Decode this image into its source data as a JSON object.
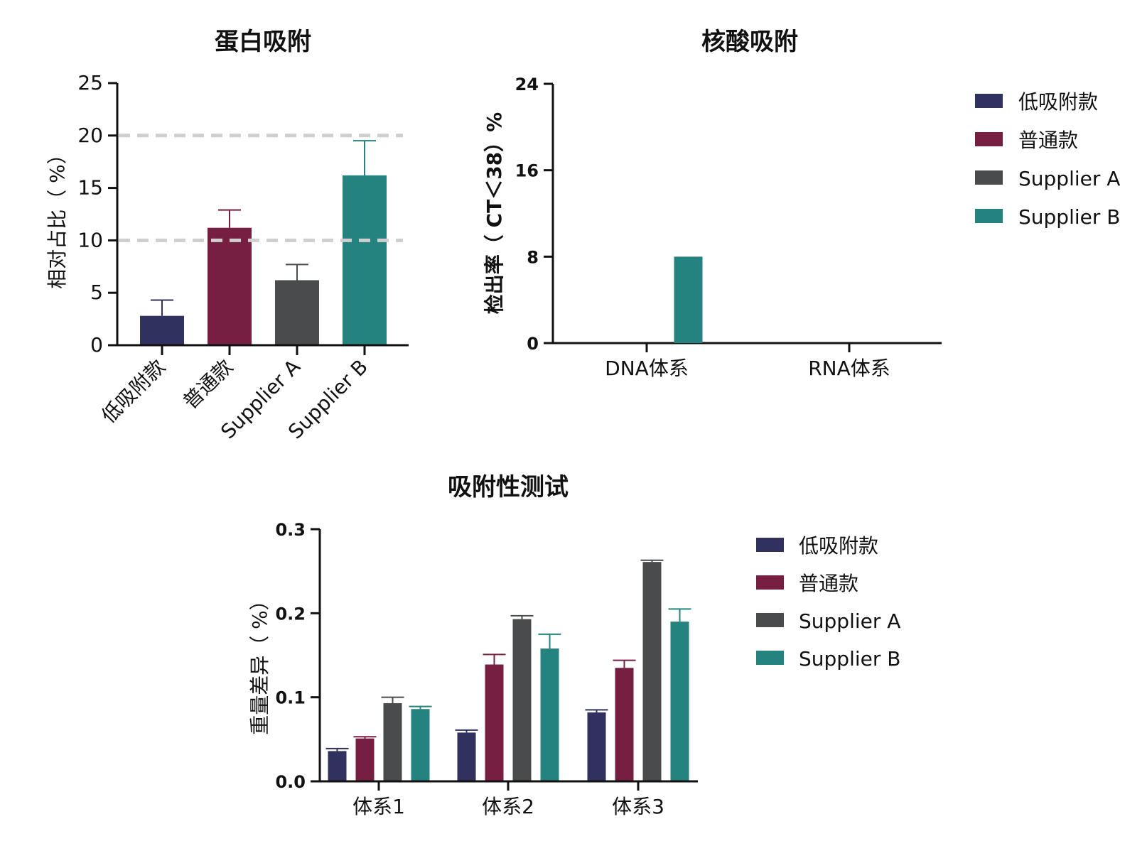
{
  "charts": [
    {
      "type": "bar",
      "title": "蛋白吸附",
      "ylabel": "相对占比（ %）",
      "ylim": [
        0,
        25
      ],
      "yticks": [
        "0",
        "5",
        "10",
        "15",
        "20",
        "25"
      ],
      "categories": [
        "低吸附款",
        "普通款",
        "Supplier A",
        "Supplier B"
      ],
      "values": [
        2.8,
        11.2,
        6.2,
        16.2
      ],
      "errors": [
        1.5,
        1.7,
        1.5,
        3.3
      ],
      "colors": [
        "#30315e",
        "#761f43",
        "#4a4b4d",
        "#25837f"
      ],
      "reference_lines": [
        10,
        20
      ]
    },
    {
      "type": "bar",
      "title": "核酸吸附",
      "ylabel": "检出率（ CT＜38）%",
      "ylim": [
        0,
        24
      ],
      "yticks": [
        "0",
        "8",
        "16",
        "24"
      ],
      "categories": [
        "DNA体系",
        "RNA体系"
      ],
      "series": [
        {
          "name": "低吸附款",
          "values": [
            0,
            0
          ]
        },
        {
          "name": "普通款",
          "values": [
            0,
            0
          ]
        },
        {
          "name": "Supplier A",
          "values": [
            0,
            0
          ]
        },
        {
          "name": "Supplier B",
          "values": [
            8,
            0
          ]
        }
      ],
      "legend": "right"
    },
    {
      "type": "bar",
      "title": "吸附性测试",
      "ylabel": "重量差异（ %）",
      "ylim": [
        0,
        0.3
      ],
      "yticks": [
        "0.0",
        "0.1",
        "0.2",
        "0.3"
      ],
      "categories": [
        "体系1",
        "体系2",
        "体系3"
      ],
      "series": [
        {
          "name": "低吸附款",
          "values": [
            0.036,
            0.058,
            0.082
          ],
          "errors": [
            0.003,
            0.003,
            0.003
          ]
        },
        {
          "name": "普通款",
          "values": [
            0.051,
            0.139,
            0.135
          ],
          "errors": [
            0.002,
            0.012,
            0.009
          ]
        },
        {
          "name": "Supplier A",
          "values": [
            0.093,
            0.193,
            0.261
          ],
          "errors": [
            0.007,
            0.004,
            0.002
          ]
        },
        {
          "name": "Supplier B",
          "values": [
            0.086,
            0.158,
            0.19
          ],
          "errors": [
            0.003,
            0.017,
            0.015
          ]
        }
      ],
      "legend": "right"
    }
  ],
  "colors": [
    "#30315e",
    "#761f43",
    "#4a4b4d",
    "#25837f"
  ]
}
